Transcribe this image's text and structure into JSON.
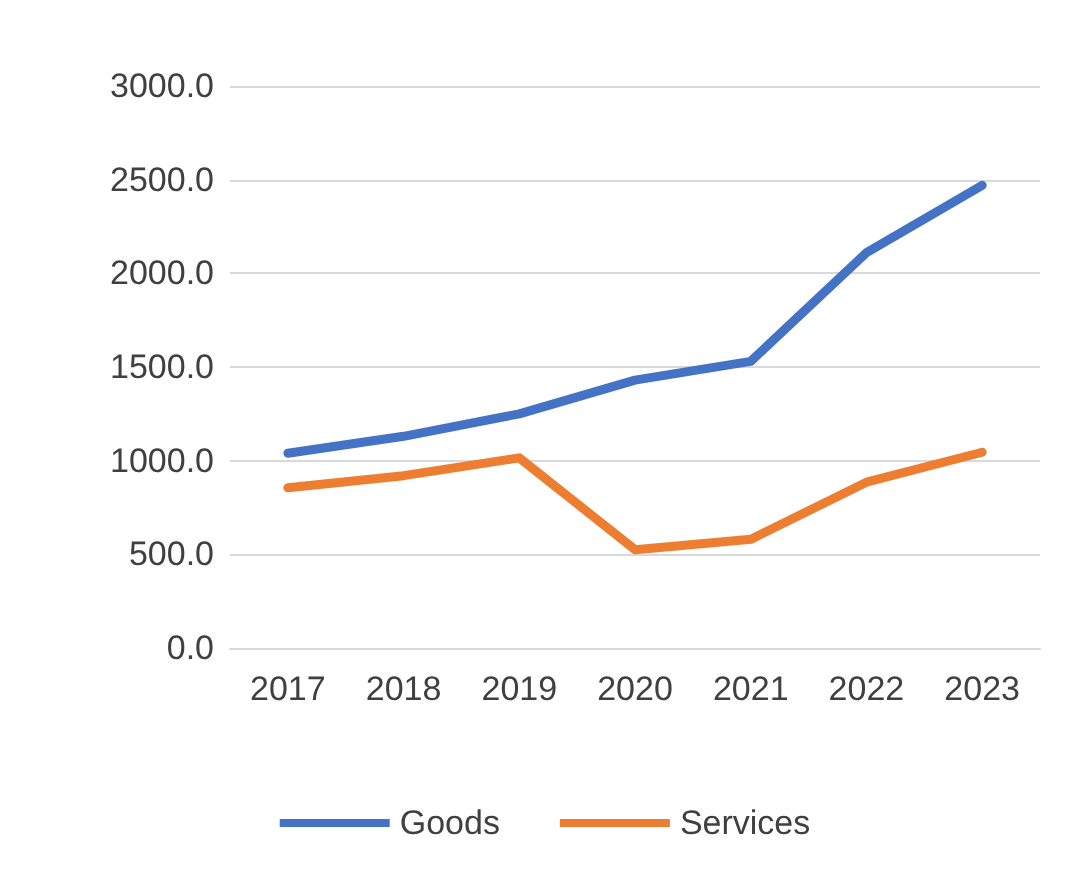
{
  "chart_data": {
    "type": "line",
    "categories": [
      "2017",
      "2018",
      "2019",
      "2020",
      "2021",
      "2022",
      "2023"
    ],
    "series": [
      {
        "name": "Goods",
        "color": "#4472c4",
        "values": [
          1040,
          1130,
          1250,
          1430,
          1530,
          2110,
          2470
        ]
      },
      {
        "name": "Services",
        "color": "#ed7d31",
        "values": [
          855,
          920,
          1015,
          525,
          580,
          885,
          1045
        ]
      }
    ],
    "ylim": [
      0,
      3000
    ],
    "yticks": [
      {
        "value": 0,
        "label": "0.0"
      },
      {
        "value": 500,
        "label": "500.0"
      },
      {
        "value": 1000,
        "label": "1000.0"
      },
      {
        "value": 1500,
        "label": "1500.0"
      },
      {
        "value": 2000,
        "label": "2000.0"
      },
      {
        "value": 2500,
        "label": "2500.0"
      },
      {
        "value": 3000,
        "label": "3000.0"
      }
    ],
    "grid": "y",
    "legend": "bottom",
    "marker": "none",
    "line_style": "solid"
  }
}
